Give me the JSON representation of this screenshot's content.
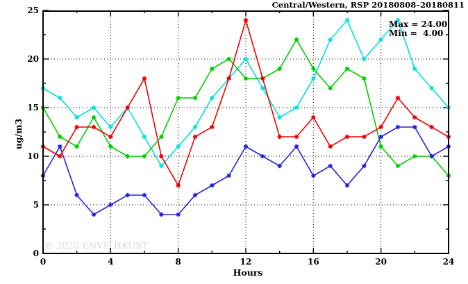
{
  "page": {
    "background": "#ffffff",
    "watermark": "© 2025 ENVF, HKUST"
  },
  "chart_data": {
    "type": "line",
    "title": "Central/Western, RSP 20180808–20180811",
    "xlabel": "Hours",
    "ylabel": "ug/m3",
    "xlim": [
      0,
      24
    ],
    "ylim": [
      0,
      25
    ],
    "x_ticks": [
      0,
      4,
      8,
      12,
      16,
      20,
      24
    ],
    "y_ticks": [
      0,
      5,
      10,
      15,
      20,
      25
    ],
    "x_minor_step": 2,
    "y_minor_step": 2.5,
    "grid_x": [
      4,
      8,
      12,
      16,
      20
    ],
    "grid_y": [
      5,
      10,
      15,
      20
    ],
    "grid": true,
    "legend_position": "none",
    "marker": "star",
    "x": [
      0,
      1,
      2,
      3,
      4,
      5,
      6,
      7,
      8,
      9,
      10,
      11,
      12,
      13,
      14,
      15,
      16,
      17,
      18,
      19,
      20,
      21,
      22,
      23,
      24
    ],
    "series": [
      {
        "name": "cyan-line",
        "color": "#00e0e0",
        "values": [
          17,
          16,
          14,
          15,
          13,
          15,
          12,
          9,
          11,
          13,
          16,
          18,
          20,
          17,
          14,
          15,
          18,
          22,
          24,
          20,
          22,
          24,
          19,
          17,
          15
        ]
      },
      {
        "name": "green-line",
        "color": "#00cc00",
        "values": [
          15,
          12,
          11,
          14,
          11,
          10,
          10,
          12,
          16,
          16,
          19,
          20,
          18,
          18,
          19,
          22,
          19,
          17,
          19,
          18,
          11,
          9,
          10,
          10,
          8
        ]
      },
      {
        "name": "blue-line",
        "color": "#2222dd",
        "values": [
          8,
          11,
          6,
          4,
          5,
          6,
          6,
          4,
          4,
          6,
          7,
          8,
          11,
          10,
          9,
          11,
          8,
          9,
          7,
          9,
          12,
          13,
          13,
          10,
          11
        ]
      },
      {
        "name": "red-line",
        "color": "#ee0000",
        "values": [
          11,
          10,
          13,
          13,
          12,
          15,
          18,
          10,
          7,
          12,
          13,
          18,
          24,
          18,
          12,
          12,
          14,
          11,
          12,
          12,
          13,
          16,
          14,
          13,
          12
        ]
      }
    ],
    "annotations": {
      "max_label": "Max = 24.00",
      "min_label": "Min =  4.00"
    }
  }
}
